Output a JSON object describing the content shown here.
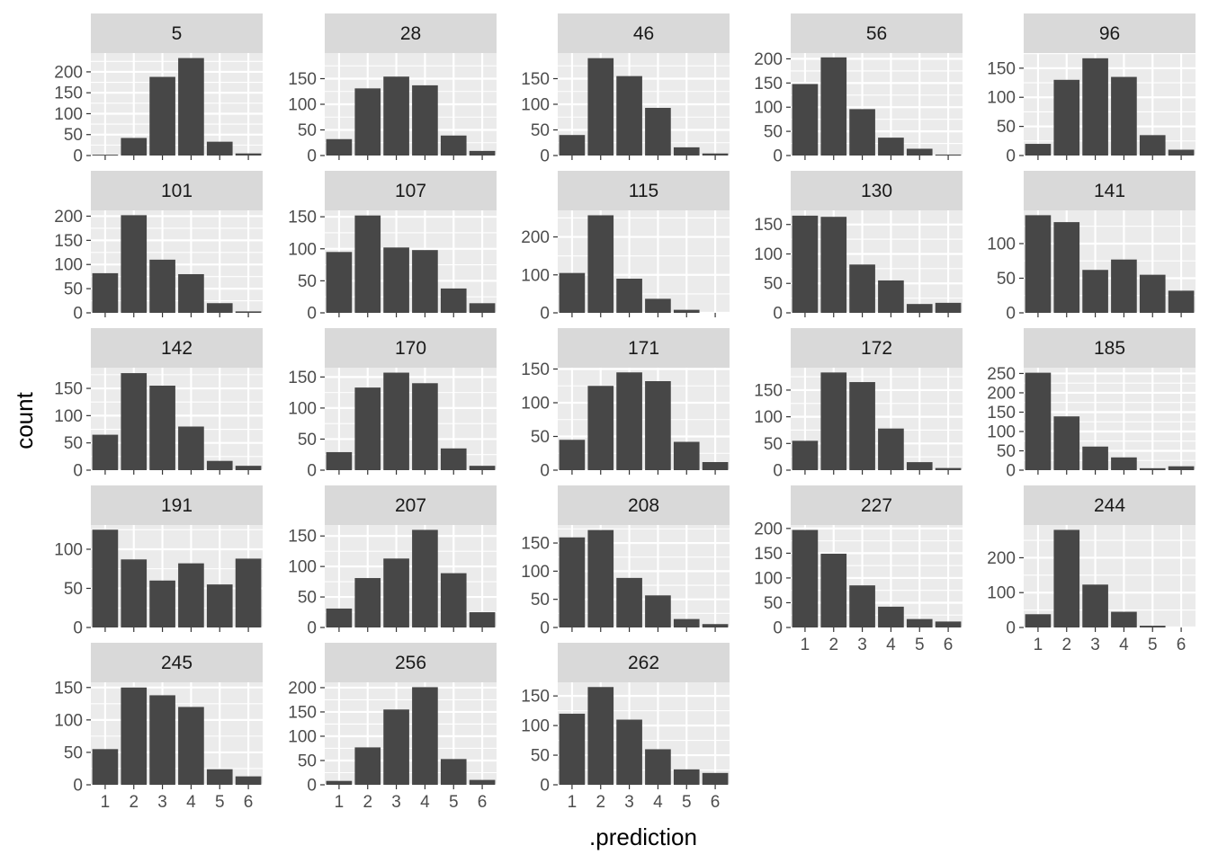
{
  "chart_data": {
    "type": "bar",
    "layout": "facet_wrap",
    "xlabel": ".prediction",
    "ylabel": "count",
    "x_categories": [
      "1",
      "2",
      "3",
      "4",
      "5",
      "6"
    ],
    "colors": {
      "bar": "#474747",
      "panel_background": "#ebebeb",
      "grid": "#ffffff",
      "strip_background": "#d9d9d9"
    },
    "grid": true,
    "facets": [
      {
        "label": "5",
        "values": [
          2,
          42,
          188,
          233,
          33,
          5
        ],
        "y_ticks": [
          0,
          50,
          100,
          150,
          200
        ],
        "ylim": [
          0,
          245
        ]
      },
      {
        "label": "28",
        "values": [
          32,
          131,
          154,
          137,
          39,
          9
        ],
        "y_ticks": [
          0,
          50,
          100,
          150
        ],
        "ylim": [
          0,
          200
        ]
      },
      {
        "label": "46",
        "values": [
          40,
          190,
          155,
          93,
          16,
          4
        ],
        "y_ticks": [
          0,
          50,
          100,
          150
        ],
        "ylim": [
          0,
          200
        ]
      },
      {
        "label": "56",
        "values": [
          148,
          203,
          96,
          37,
          14,
          2
        ],
        "y_ticks": [
          0,
          50,
          100,
          150,
          200
        ],
        "ylim": [
          0,
          212
        ]
      },
      {
        "label": "96",
        "values": [
          20,
          130,
          167,
          135,
          35,
          10
        ],
        "y_ticks": [
          0,
          50,
          100,
          150
        ],
        "ylim": [
          0,
          176
        ]
      },
      {
        "label": "101",
        "values": [
          82,
          202,
          110,
          80,
          20,
          3
        ],
        "y_ticks": [
          0,
          50,
          100,
          150,
          200
        ],
        "ylim": [
          0,
          212
        ]
      },
      {
        "label": "107",
        "values": [
          95,
          152,
          102,
          98,
          38,
          15
        ],
        "y_ticks": [
          0,
          50,
          100,
          150
        ],
        "ylim": [
          0,
          160
        ]
      },
      {
        "label": "115",
        "values": [
          105,
          257,
          90,
          37,
          8,
          0
        ],
        "y_ticks": [
          0,
          100,
          200
        ],
        "ylim": [
          0,
          270
        ]
      },
      {
        "label": "130",
        "values": [
          165,
          163,
          82,
          55,
          15,
          17
        ],
        "y_ticks": [
          0,
          50,
          100,
          150
        ],
        "ylim": [
          0,
          174
        ]
      },
      {
        "label": "141",
        "values": [
          141,
          131,
          62,
          77,
          55,
          32
        ],
        "y_ticks": [
          0,
          50,
          100
        ],
        "ylim": [
          0,
          148
        ]
      },
      {
        "label": "142",
        "values": [
          65,
          178,
          155,
          80,
          17,
          8
        ],
        "y_ticks": [
          0,
          50,
          100,
          150
        ],
        "ylim": [
          0,
          188
        ]
      },
      {
        "label": "170",
        "values": [
          29,
          133,
          157,
          140,
          35,
          7
        ],
        "y_ticks": [
          0,
          50,
          100,
          150
        ],
        "ylim": [
          0,
          165
        ]
      },
      {
        "label": "171",
        "values": [
          45,
          125,
          145,
          132,
          42,
          12
        ],
        "y_ticks": [
          0,
          50,
          100,
          150
        ],
        "ylim": [
          0,
          152
        ]
      },
      {
        "label": "172",
        "values": [
          55,
          183,
          165,
          78,
          15,
          4
        ],
        "y_ticks": [
          0,
          50,
          100,
          150
        ],
        "ylim": [
          0,
          192
        ]
      },
      {
        "label": "185",
        "values": [
          252,
          139,
          61,
          33,
          5,
          10
        ],
        "y_ticks": [
          0,
          50,
          100,
          150,
          200,
          250
        ],
        "ylim": [
          0,
          265
        ]
      },
      {
        "label": "191",
        "values": [
          125,
          87,
          60,
          82,
          55,
          88
        ],
        "y_ticks": [
          0,
          50,
          100
        ],
        "ylim": [
          0,
          131
        ]
      },
      {
        "label": "207",
        "values": [
          31,
          81,
          113,
          160,
          89,
          25
        ],
        "y_ticks": [
          0,
          50,
          100,
          150
        ],
        "ylim": [
          0,
          168
        ]
      },
      {
        "label": "208",
        "values": [
          160,
          173,
          88,
          57,
          15,
          6
        ],
        "y_ticks": [
          0,
          50,
          100,
          150
        ],
        "ylim": [
          0,
          182
        ]
      },
      {
        "label": "227",
        "values": [
          197,
          149,
          85,
          42,
          17,
          12
        ],
        "y_ticks": [
          0,
          50,
          100,
          150,
          200
        ],
        "ylim": [
          0,
          207
        ]
      },
      {
        "label": "244",
        "values": [
          38,
          280,
          123,
          45,
          5,
          0
        ],
        "y_ticks": [
          0,
          100,
          200
        ],
        "ylim": [
          0,
          294
        ]
      },
      {
        "label": "245",
        "values": [
          55,
          150,
          138,
          120,
          24,
          13
        ],
        "y_ticks": [
          0,
          50,
          100,
          150
        ],
        "ylim": [
          0,
          158
        ]
      },
      {
        "label": "256",
        "values": [
          8,
          77,
          155,
          201,
          53,
          10
        ],
        "y_ticks": [
          0,
          50,
          100,
          150,
          200
        ],
        "ylim": [
          0,
          211
        ]
      },
      {
        "label": "262",
        "values": [
          120,
          165,
          110,
          60,
          26,
          20
        ],
        "y_ticks": [
          0,
          50,
          100,
          150
        ],
        "ylim": [
          0,
          173
        ]
      }
    ]
  }
}
